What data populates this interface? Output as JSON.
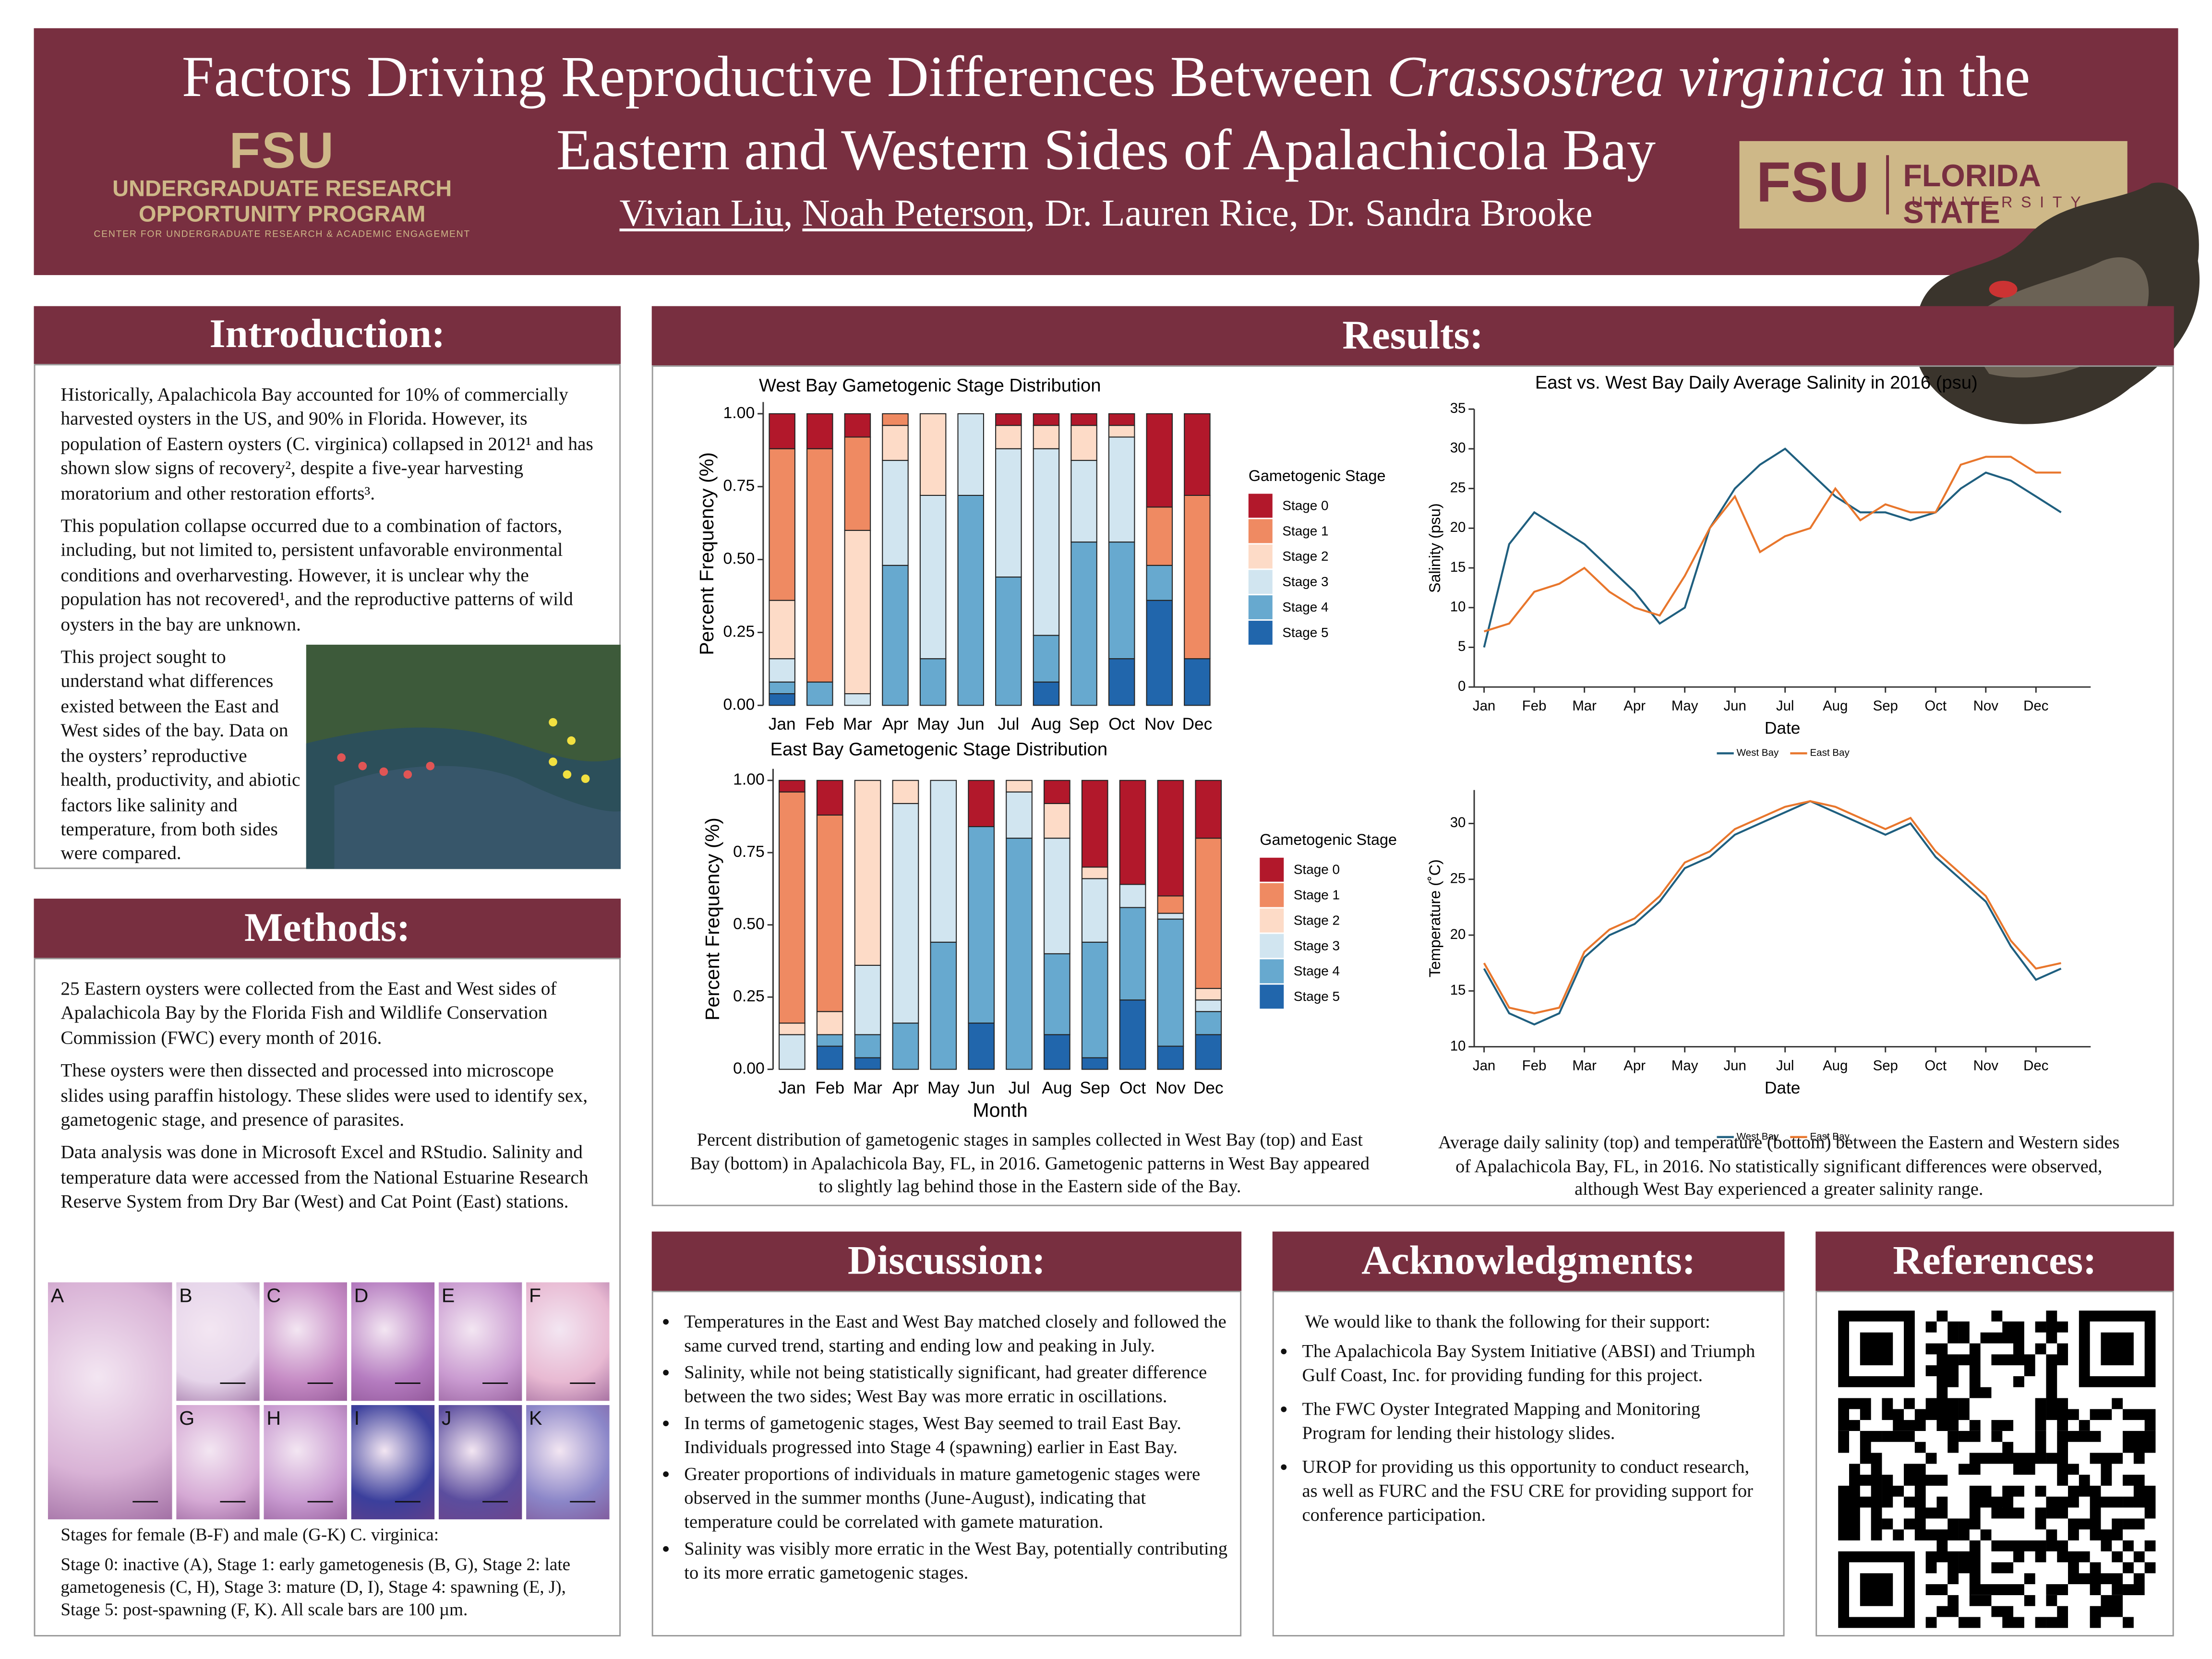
{
  "header": {
    "title_before": "Factors Driving Reproductive Differences Between ",
    "title_italic": "Crassostrea virginica",
    "title_after": " in the",
    "title_line2": "Eastern and Western Sides of Apalachicola Bay",
    "authors": [
      "Vivian Liu",
      ", ",
      "Noah Peterson",
      ", Dr. Lauren Rice, Dr. Sandra Brooke"
    ],
    "left_logo": {
      "mark": "FSU",
      "line1": "UNDERGRADUATE RESEARCH",
      "line2": "OPPORTUNITY PROGRAM",
      "line3": "CENTER FOR UNDERGRADUATE RESEARCH & ACADEMIC ENGAGEMENT"
    },
    "right_logo": {
      "mark": "FSU",
      "line1": "FLORIDA STATE",
      "line2": "UNIVERSITY"
    }
  },
  "introduction": {
    "heading": "Introduction:",
    "paragraphs": [
      "Historically, Apalachicola Bay accounted for 10% of commercially harvested oysters in the US, and 90% in Florida. However, its population of Eastern oysters (C. virginica) collapsed in 2012¹ and has shown slow signs of recovery², despite a five-year harvesting moratorium and other restoration efforts³.",
      "This population collapse occurred due to a combination of factors, including, but not limited to, persistent unfavorable environmental conditions and overharvesting. However, it is unclear why the population has not recovered¹, and the reproductive patterns of wild oysters in the bay are unknown.",
      "This project sought to understand what differences existed between the East and West sides of the bay. Data on the oysters’ reproductive health, productivity, and abiotic factors like salinity and temperature, from both sides were compared."
    ]
  },
  "methods": {
    "heading": "Methods:",
    "paragraphs": [
      "25 Eastern oysters were collected from the East and West sides of Apalachicola Bay by the Florida Fish and Wildlife Conservation Commission (FWC) every month of 2016.",
      "These oysters were then dissected and processed into microscope slides using paraffin histology. These slides were used to identify sex, gametogenic stage, and presence of parasites.",
      "Data analysis was done in Microsoft Excel and RStudio. Salinity and temperature data were accessed from the National Estuarine Research Reserve System from Dry Bar (West) and Cat Point (East) stations."
    ],
    "panel_letters": [
      "A",
      "B",
      "C",
      "D",
      "E",
      "F",
      "G",
      "H",
      "I",
      "J",
      "K"
    ],
    "caption_line1": "Stages for female (B-F) and male (G-K) C. virginica:",
    "caption_line2": "Stage 0: inactive (A), Stage 1: early gametogenesis (B, G), Stage 2: late gametogenesis (C, H), Stage 3: mature (D, I), Stage 4: spawning (E, J), Stage 5: post-spawning (F, K). All scale bars are 100 µm."
  },
  "results": {
    "heading": "Results:",
    "caption_left": "Percent distribution of gametogenic stages in samples collected in West Bay (top) and East Bay (bottom) in Apalachicola Bay, FL, in 2016. Gametogenic patterns in West Bay appeared to slightly lag behind those in the Eastern side of the Bay.",
    "caption_right": "Average daily salinity (top) and temperature (bottom) between the Eastern and Western sides of Apalachicola Bay, FL, in 2016. No statistically significant differences were observed, although West Bay experienced a greater salinity range."
  },
  "chart_data": [
    {
      "type": "bar",
      "stacked": true,
      "title": "West Bay Gametogenic Stage Distribution",
      "y_label": "Percent Frequency (%)",
      "legend_title": "Gametogenic Stage",
      "categories": [
        "Jan",
        "Feb",
        "Mar",
        "Apr",
        "May",
        "Jun",
        "Jul",
        "Aug",
        "Sep",
        "Oct",
        "Nov",
        "Dec"
      ],
      "ylim": [
        0,
        1.04
      ],
      "yticks": [
        {
          "value": 0,
          "label": "0.00"
        },
        {
          "value": 0.25,
          "label": "0.25"
        },
        {
          "value": 0.5,
          "label": "0.50"
        },
        {
          "value": 0.75,
          "label": "0.75"
        },
        {
          "value": 1,
          "label": "1.00"
        }
      ],
      "series": [
        {
          "name": "Stage 0",
          "color": "#b2182b",
          "values": [
            0.12,
            0.12,
            0.08,
            0,
            0,
            0,
            0.04,
            0.04,
            0.04,
            0.04,
            0.32,
            0.28
          ]
        },
        {
          "name": "Stage 1",
          "color": "#ef8a62",
          "values": [
            0.52,
            0.8,
            0.32,
            0.04,
            0,
            0,
            0,
            0,
            0,
            0,
            0.2,
            0.56
          ]
        },
        {
          "name": "Stage 2",
          "color": "#fddbc7",
          "values": [
            0.2,
            0,
            0.56,
            0.12,
            0.28,
            0,
            0.08,
            0.08,
            0.12,
            0.04,
            0,
            0
          ]
        },
        {
          "name": "Stage 3",
          "color": "#d1e5f0",
          "values": [
            0.08,
            0,
            0.04,
            0.36,
            0.56,
            0.28,
            0.44,
            0.64,
            0.28,
            0.36,
            0,
            0
          ]
        },
        {
          "name": "Stage 4",
          "color": "#67a9cf",
          "values": [
            0.04,
            0.08,
            0,
            0.48,
            0.16,
            0.72,
            0.44,
            0.16,
            0.56,
            0.4,
            0.12,
            0
          ]
        },
        {
          "name": "Stage 5",
          "color": "#2166ac",
          "values": [
            0.04,
            0,
            0,
            0,
            0,
            0,
            0,
            0.08,
            0,
            0.16,
            0.36,
            0.16
          ]
        }
      ]
    },
    {
      "type": "bar",
      "stacked": true,
      "title": "East Bay Gametogenic Stage Distribution",
      "y_label": "Percent Frequency (%)",
      "x_label": "Month",
      "legend_title": "Gametogenic Stage",
      "categories": [
        "Jan",
        "Feb",
        "Mar",
        "Apr",
        "May",
        "Jun",
        "Jul",
        "Aug",
        "Sep",
        "Oct",
        "Nov",
        "Dec"
      ],
      "ylim": [
        0,
        1.04
      ],
      "yticks": [
        {
          "value": 0,
          "label": "0.00"
        },
        {
          "value": 0.25,
          "label": "0.25"
        },
        {
          "value": 0.5,
          "label": "0.50"
        },
        {
          "value": 0.75,
          "label": "0.75"
        },
        {
          "value": 1,
          "label": "1.00"
        }
      ],
      "series": [
        {
          "name": "Stage 0",
          "color": "#b2182b",
          "values": [
            0.04,
            0.12,
            0,
            0,
            0,
            0.16,
            0,
            0.08,
            0.3,
            0.36,
            0.4,
            0.2
          ]
        },
        {
          "name": "Stage 1",
          "color": "#ef8a62",
          "values": [
            0.8,
            0.68,
            0,
            0,
            0,
            0,
            0,
            0,
            0,
            0,
            0.06,
            0.52
          ]
        },
        {
          "name": "Stage 2",
          "color": "#fddbc7",
          "values": [
            0.04,
            0.08,
            0.64,
            0.08,
            0,
            0,
            0.04,
            0.12,
            0.04,
            0,
            0,
            0.04
          ]
        },
        {
          "name": "Stage 3",
          "color": "#d1e5f0",
          "values": [
            0.12,
            0,
            0.24,
            0.76,
            0.56,
            0,
            0.16,
            0.4,
            0.22,
            0.08,
            0.02,
            0.04
          ]
        },
        {
          "name": "Stage 4",
          "color": "#67a9cf",
          "values": [
            0,
            0.04,
            0.08,
            0.16,
            0.44,
            0.68,
            0.8,
            0.28,
            0.4,
            0.32,
            0.44,
            0.08
          ]
        },
        {
          "name": "Stage 5",
          "color": "#2166ac",
          "values": [
            0,
            0.08,
            0.04,
            0,
            0,
            0.16,
            0,
            0.12,
            0.04,
            0.24,
            0.08,
            0.12
          ]
        }
      ]
    },
    {
      "type": "line",
      "title": "East vs. West Bay Daily Average Salinity in 2016 (psu)",
      "y_label": "Salinity (psu)",
      "x_label": "Date",
      "categories": [
        "Jan",
        null,
        "Feb",
        null,
        "Mar",
        null,
        "Apr",
        null,
        "May",
        null,
        "Jun",
        null,
        "Jul",
        null,
        "Aug",
        null,
        "Sep",
        null,
        "Oct",
        null,
        "Nov",
        null,
        "Dec",
        null
      ],
      "ylim": [
        0,
        35
      ],
      "yticks": [
        0,
        5,
        10,
        15,
        20,
        25,
        30,
        35
      ],
      "series": [
        {
          "name": "West Bay",
          "color": "#1f5f7f",
          "values": [
            5,
            18,
            22,
            20,
            18,
            15,
            12,
            8,
            10,
            20,
            25,
            28,
            30,
            27,
            24,
            22,
            22,
            21,
            22,
            25,
            27,
            26,
            24,
            22
          ]
        },
        {
          "name": "East Bay",
          "color": "#e8762c",
          "values": [
            7,
            8,
            12,
            13,
            15,
            12,
            10,
            9,
            14,
            20,
            24,
            17,
            19,
            20,
            25,
            21,
            23,
            22,
            22,
            28,
            29,
            29,
            27,
            27
          ]
        }
      ]
    },
    {
      "type": "line",
      "y_label": "Temperature (˚C)",
      "x_label": "Date",
      "categories": [
        "Jan",
        null,
        "Feb",
        null,
        "Mar",
        null,
        "Apr",
        null,
        "May",
        null,
        "Jun",
        null,
        "Jul",
        null,
        "Aug",
        null,
        "Sep",
        null,
        "Oct",
        null,
        "Nov",
        null,
        "Dec",
        null
      ],
      "ylim": [
        10,
        33
      ],
      "yticks": [
        10,
        15,
        20,
        25,
        30
      ],
      "series": [
        {
          "name": "West Bay",
          "color": "#1f5f7f",
          "values": [
            17,
            13,
            12,
            13,
            18,
            20,
            21,
            23,
            26,
            27,
            29,
            30,
            31,
            32,
            31,
            30,
            29,
            30,
            27,
            25,
            23,
            19,
            16,
            17
          ]
        },
        {
          "name": "East Bay",
          "color": "#e8762c",
          "values": [
            17.5,
            13.5,
            13,
            13.5,
            18.5,
            20.5,
            21.5,
            23.5,
            26.5,
            27.5,
            29.5,
            30.5,
            31.5,
            32,
            31.5,
            30.5,
            29.5,
            30.5,
            27.5,
            25.5,
            23.5,
            19.5,
            17,
            17.5
          ]
        }
      ]
    }
  ],
  "discussion": {
    "heading": "Discussion:",
    "bullets": [
      "Temperatures in the East and West Bay matched closely and followed the same curved trend, starting and ending low and peaking in July.",
      "Salinity, while not being statistically significant, had greater difference between the two sides; West Bay was more erratic in oscillations.",
      "In terms of gametogenic stages, West Bay seemed to trail East Bay. Individuals progressed into Stage 4 (spawning) earlier in East Bay.",
      "Greater proportions of individuals in mature gametogenic stages were observed in the summer months (June-August), indicating that temperature could be correlated with gamete maturation.",
      "Salinity was visibly more erratic in the West Bay, potentially contributing to its more erratic gametogenic stages."
    ]
  },
  "acknowledgments": {
    "heading": "Acknowledgments:",
    "intro": "We would like to thank the following for their support:",
    "bullets": [
      "The Apalachicola Bay System Initiative (ABSI) and Triumph Gulf Coast, Inc. for providing funding for this project.",
      "The FWC Oyster Integrated Mapping and Monitoring Program for lending their histology slides.",
      "UROP for providing us this opportunity to conduct research, as well as FURC and the FSU CRE for providing support for conference participation."
    ]
  },
  "references": {
    "heading": "References:"
  }
}
